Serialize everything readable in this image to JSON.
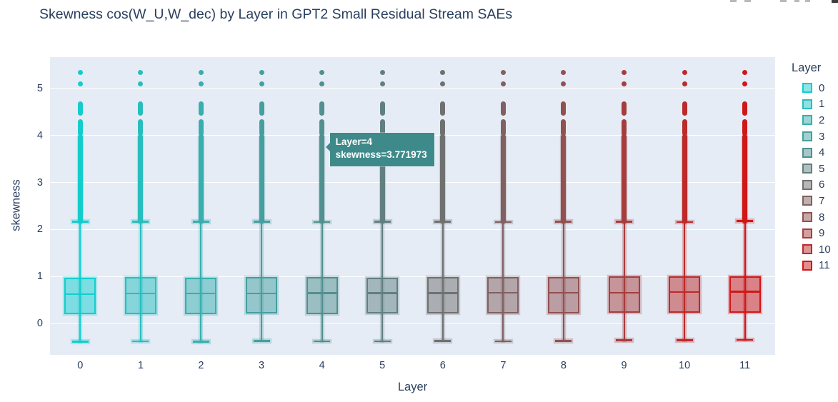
{
  "title": "Skewness cos(W_U,W_dec) by Layer in GPT2 Small Residual Stream SAEs",
  "colors": {
    "background": "#ffffff",
    "plot_background": "#e5ecf6",
    "gridline": "#ffffff",
    "text": "#2a3f5f",
    "tooltip_bg": "#3e8a8a",
    "tooltip_text": "#ffffff"
  },
  "tooltip": {
    "line1": "Layer=4",
    "line2": "skewness=3.771973",
    "layer": 4,
    "skewness": 3.771973
  },
  "chart_data": {
    "type": "box",
    "title": "Skewness cos(W_U,W_dec) by Layer in GPT2 Small Residual Stream SAEs",
    "xlabel": "Layer",
    "ylabel": "skewness",
    "categories": [
      "0",
      "1",
      "2",
      "3",
      "4",
      "5",
      "6",
      "7",
      "8",
      "9",
      "10",
      "11"
    ],
    "yticks": [
      0,
      1,
      2,
      3,
      4,
      5
    ],
    "ylim": [
      -0.66,
      5.66
    ],
    "grid": true,
    "legend": {
      "title": "Layer",
      "position": "right",
      "entries": [
        "0",
        "1",
        "2",
        "3",
        "4",
        "5",
        "6",
        "7",
        "8",
        "9",
        "10",
        "11"
      ]
    },
    "outliers": {
      "strip": [
        2.17,
        3.98
      ],
      "blobs": [
        [
          4.04,
          4.3
        ],
        [
          4.46,
          4.67
        ]
      ],
      "dots": [
        5.09,
        5.33
      ]
    },
    "series": [
      {
        "name": "0",
        "color": "#13cdcd",
        "q1": 0.2,
        "median": 0.63,
        "q3": 0.98,
        "whisker_low": -0.38,
        "whisker_high": 2.17
      },
      {
        "name": "1",
        "color": "#28bebe",
        "q1": 0.21,
        "median": 0.64,
        "q3": 0.99,
        "whisker_low": -0.37,
        "whisker_high": 2.17
      },
      {
        "name": "2",
        "color": "#38aeae",
        "q1": 0.21,
        "median": 0.64,
        "q3": 0.98,
        "whisker_low": -0.38,
        "whisker_high": 2.17
      },
      {
        "name": "3",
        "color": "#459f9f",
        "q1": 0.22,
        "median": 0.64,
        "q3": 0.99,
        "whisker_low": -0.36,
        "whisker_high": 2.17
      },
      {
        "name": "4",
        "color": "#528f8f",
        "q1": 0.21,
        "median": 0.65,
        "q3": 0.99,
        "whisker_low": -0.37,
        "whisker_high": 2.16
      },
      {
        "name": "5",
        "color": "#617f7f",
        "q1": 0.22,
        "median": 0.65,
        "q3": 0.98,
        "whisker_low": -0.37,
        "whisker_high": 2.17
      },
      {
        "name": "6",
        "color": "#6f7070",
        "q1": 0.22,
        "median": 0.65,
        "q3": 0.99,
        "whisker_low": -0.36,
        "whisker_high": 2.17
      },
      {
        "name": "7",
        "color": "#806060",
        "q1": 0.22,
        "median": 0.66,
        "q3": 0.99,
        "whisker_low": -0.37,
        "whisker_high": 2.16
      },
      {
        "name": "8",
        "color": "#925050",
        "q1": 0.22,
        "median": 0.66,
        "q3": 0.99,
        "whisker_low": -0.36,
        "whisker_high": 2.17
      },
      {
        "name": "9",
        "color": "#a63d3d",
        "q1": 0.23,
        "median": 0.66,
        "q3": 1.0,
        "whisker_low": -0.35,
        "whisker_high": 2.17
      },
      {
        "name": "10",
        "color": "#bc2a2a",
        "q1": 0.23,
        "median": 0.67,
        "q3": 1.0,
        "whisker_low": -0.35,
        "whisker_high": 2.16
      },
      {
        "name": "11",
        "color": "#d01717",
        "q1": 0.23,
        "median": 0.68,
        "q3": 1.0,
        "whisker_low": -0.34,
        "whisker_high": 2.18
      }
    ]
  }
}
